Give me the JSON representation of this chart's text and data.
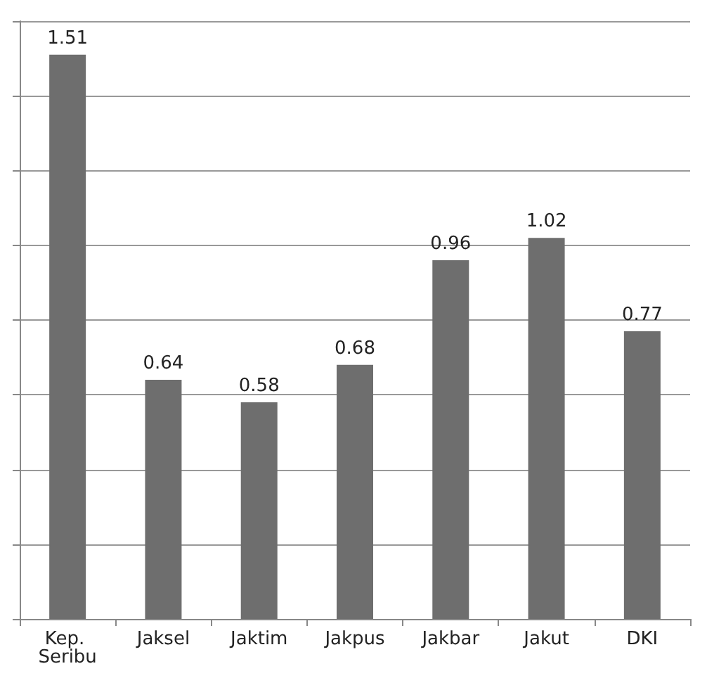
{
  "chart_data": {
    "type": "bar",
    "categories": [
      "Kep. Seribu",
      "Jaksel",
      "Jaktim",
      "Jakpus",
      "Jakbar",
      "Jakut",
      "DKI"
    ],
    "values": [
      1.51,
      0.64,
      0.58,
      0.68,
      0.96,
      1.02,
      0.77
    ],
    "color": "#6e6e6e",
    "ylim": [
      0,
      1.6
    ],
    "yticks": [
      {
        "value": 0,
        "label": null
      },
      {
        "value": 0.2,
        "label": null
      },
      {
        "value": 0.4,
        "label": null
      },
      {
        "value": 0.6,
        "label": null
      },
      {
        "value": 0.8,
        "label": null
      },
      {
        "value": 1.0,
        "label": null
      },
      {
        "value": 1.2,
        "label": null
      },
      {
        "value": 1.4,
        "label": null
      },
      {
        "value": 1.6,
        "label": null
      }
    ],
    "tick_labels": "x",
    "grid": "y",
    "data_labels": true
  }
}
